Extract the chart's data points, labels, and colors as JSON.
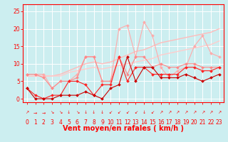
{
  "x": [
    0,
    1,
    2,
    3,
    4,
    5,
    6,
    7,
    8,
    9,
    10,
    11,
    12,
    13,
    14,
    15,
    16,
    17,
    18,
    19,
    20,
    21,
    22,
    23
  ],
  "lines": [
    {
      "y": [
        6.5,
        6.5,
        6.5,
        6.5,
        7.0,
        8.0,
        9.0,
        10.0,
        10.5,
        10.0,
        10.5,
        11.5,
        12.5,
        13.5,
        14.0,
        15.0,
        16.0,
        16.5,
        17.0,
        17.5,
        18.0,
        18.5,
        19.0,
        20.0
      ],
      "color": "#ffbbbb",
      "lw": 1.0,
      "marker": null,
      "zorder": 2
    },
    {
      "y": [
        6.5,
        6.5,
        6.5,
        6.5,
        6.5,
        7.5,
        8.0,
        8.5,
        9.0,
        8.5,
        9.0,
        9.5,
        10.0,
        10.5,
        11.0,
        11.5,
        12.5,
        13.0,
        13.5,
        14.0,
        14.5,
        15.0,
        15.5,
        16.5
      ],
      "color": "#ffcccc",
      "lw": 1.0,
      "marker": null,
      "zorder": 2
    },
    {
      "y": [
        7,
        7,
        7,
        3,
        5,
        5,
        7,
        12,
        12,
        5,
        5,
        20,
        21,
        12,
        22,
        18,
        9,
        6,
        8,
        9,
        15,
        18,
        13,
        12
      ],
      "color": "#ffaaaa",
      "lw": 0.8,
      "marker": "D",
      "ms": 2.0,
      "zorder": 3
    },
    {
      "y": [
        7,
        7,
        6,
        3,
        5,
        5,
        6,
        12,
        12,
        5,
        5,
        12,
        7,
        12,
        12,
        9,
        10,
        9,
        9,
        10,
        10,
        9,
        9,
        9
      ],
      "color": "#ff8888",
      "lw": 0.8,
      "marker": "D",
      "ms": 2.0,
      "zorder": 4
    },
    {
      "y": [
        3,
        1,
        0,
        1,
        1,
        5,
        5,
        4,
        1,
        4,
        4,
        12,
        5,
        9,
        9,
        7,
        7,
        7,
        7,
        9,
        9,
        8,
        8,
        9
      ],
      "color": "#ff2222",
      "lw": 0.8,
      "marker": "D",
      "ms": 2.0,
      "zorder": 5
    },
    {
      "y": [
        3,
        0,
        0,
        0,
        1,
        1,
        1,
        2,
        1,
        0,
        3,
        4,
        12,
        5,
        9,
        9,
        6,
        6,
        6,
        7,
        6,
        5,
        6,
        7
      ],
      "color": "#cc0000",
      "lw": 0.8,
      "marker": "D",
      "ms": 2.0,
      "zorder": 6
    }
  ],
  "xlabel": "Vent moyen/en rafales ( km/h )",
  "xlabel_color": "#ff0000",
  "xlabel_fontsize": 7,
  "xlim": [
    -0.5,
    23.5
  ],
  "ylim": [
    -1,
    27
  ],
  "yticks": [
    0,
    5,
    10,
    15,
    20,
    25
  ],
  "xticks": [
    0,
    1,
    2,
    3,
    4,
    5,
    6,
    7,
    8,
    9,
    10,
    11,
    12,
    13,
    14,
    15,
    16,
    17,
    18,
    19,
    20,
    21,
    22,
    23
  ],
  "bg_color": "#cceef0",
  "grid_color": "#ffffff",
  "axis_color": "#ff0000",
  "tick_color": "#ff0000",
  "tick_fontsize": 5.5,
  "arrow_chars": [
    "↗",
    "→",
    "→",
    "↘",
    "↘",
    "↓",
    "↘",
    "↓",
    "↓",
    "↓",
    "↙",
    "↙",
    "↙",
    "↙",
    "↓",
    "↙",
    "↗",
    "↗",
    "↗",
    "↗",
    "↗",
    "↗",
    "↗",
    "↗"
  ]
}
